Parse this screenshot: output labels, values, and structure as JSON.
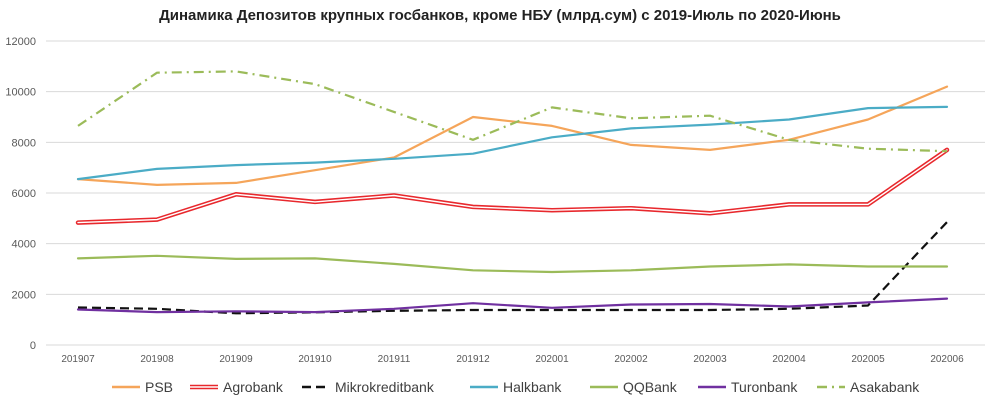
{
  "chart_data": {
    "type": "line",
    "title": "Динамика Депозитов крупных госбанков, кроме НБУ (млрд.сум) с 2019-Июль по 2020-Июнь",
    "categories": [
      "201907",
      "201908",
      "201909",
      "201910",
      "201911",
      "201912",
      "202001",
      "202002",
      "202003",
      "202004",
      "202005",
      "202006"
    ],
    "ylim": [
      0,
      12000
    ],
    "yticks": [
      0,
      2000,
      4000,
      6000,
      8000,
      10000,
      12000
    ],
    "ytick_labels": [
      "0",
      "2000",
      "4000",
      "6000",
      "8000",
      "10000",
      "12000"
    ],
    "grid": true,
    "legend_position": "bottom",
    "series": [
      {
        "name": "PSB",
        "color": "#F5A55A",
        "style": "solid",
        "double": false,
        "values": [
          6550,
          6320,
          6400,
          6900,
          7400,
          9000,
          8650,
          7900,
          7700,
          8100,
          8900,
          10200
        ]
      },
      {
        "name": "Agrobank",
        "color": "#E8282D",
        "style": "solid",
        "double": true,
        "values": [
          4830,
          4950,
          5950,
          5650,
          5900,
          5450,
          5320,
          5400,
          5200,
          5550,
          5550,
          7700
        ]
      },
      {
        "name": "Mikrokreditbank",
        "color": "#111111",
        "style": "dashed",
        "double": false,
        "values": [
          1480,
          1430,
          1250,
          1290,
          1350,
          1380,
          1380,
          1380,
          1380,
          1430,
          1560,
          4850
        ]
      },
      {
        "name": "Halkbank",
        "color": "#4BACC6",
        "style": "solid",
        "double": false,
        "values": [
          6550,
          6950,
          7100,
          7200,
          7350,
          7550,
          8200,
          8550,
          8700,
          8900,
          9350,
          9400
        ]
      },
      {
        "name": "QQBank",
        "color": "#9BBB59",
        "style": "solid",
        "double": false,
        "values": [
          3420,
          3520,
          3400,
          3420,
          3200,
          2950,
          2880,
          2950,
          3100,
          3180,
          3100,
          3100
        ]
      },
      {
        "name": "Turonbank",
        "color": "#7030A0",
        "style": "solid",
        "double": false,
        "values": [
          1400,
          1300,
          1330,
          1300,
          1430,
          1650,
          1470,
          1600,
          1620,
          1520,
          1680,
          1830
        ]
      },
      {
        "name": "Asakabank",
        "color": "#9BBB59",
        "style": "dashdot",
        "double": false,
        "values": [
          8650,
          10750,
          10800,
          10300,
          9200,
          8100,
          9380,
          8950,
          9050,
          8100,
          7750,
          7650
        ]
      }
    ]
  }
}
